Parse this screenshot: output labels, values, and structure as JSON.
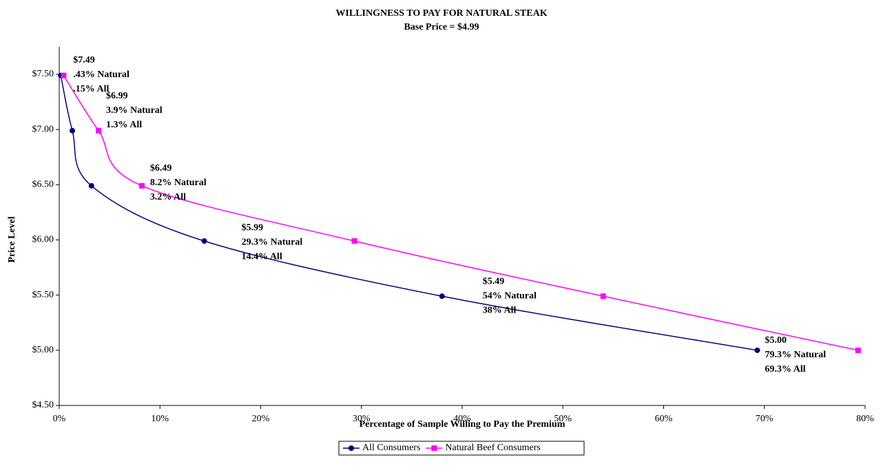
{
  "chart_data": {
    "type": "line",
    "title": "WILLINGNESS TO PAY FOR NATURAL STEAK",
    "subtitle": "Base Price = $4.99",
    "x_label": "Percentage of Sample Willing to Pay the Premium",
    "y_label": "Price Level",
    "xlim": [
      0,
      80
    ],
    "ylim": [
      4.5,
      7.5
    ],
    "xticks": [
      {
        "value": 0,
        "label": "0%"
      },
      {
        "value": 10,
        "label": "10%"
      },
      {
        "value": 20,
        "label": "20%"
      },
      {
        "value": 30,
        "label": "30%"
      },
      {
        "value": 40,
        "label": "40%"
      },
      {
        "value": 50,
        "label": "50%"
      },
      {
        "value": 60,
        "label": "60%"
      },
      {
        "value": 70,
        "label": "70%"
      },
      {
        "value": 80,
        "label": "80%"
      }
    ],
    "yticks": [
      {
        "value": 4.5,
        "label": "$4.50"
      },
      {
        "value": 5.0,
        "label": "$5.00"
      },
      {
        "value": 5.5,
        "label": "$5.50"
      },
      {
        "value": 6.0,
        "label": "$6.00"
      },
      {
        "value": 6.5,
        "label": "$6.50"
      },
      {
        "value": 7.0,
        "label": "$7.00"
      },
      {
        "value": 7.5,
        "label": "$7.50"
      }
    ],
    "series": [
      {
        "name": "All Consumers",
        "color": "#000080",
        "marker": "circle",
        "x": [
          0.15,
          1.3,
          3.2,
          14.4,
          38,
          69.3
        ],
        "values": [
          7.49,
          6.99,
          6.49,
          5.99,
          5.49,
          5.0
        ]
      },
      {
        "name": "Natural Beef Consumers",
        "color": "#ff00ff",
        "marker": "square",
        "x": [
          0.43,
          3.9,
          8.2,
          29.3,
          54,
          79.3
        ],
        "values": [
          7.49,
          6.99,
          6.49,
          5.99,
          5.49,
          5.0
        ]
      }
    ],
    "annotations": [
      [
        "$7.49",
        ".43% Natural",
        ".15% All"
      ],
      [
        "$6.99",
        "3.9% Natural",
        "1.3% All"
      ],
      [
        "$6.49",
        "8.2% Natural",
        "3.2% All"
      ],
      [
        "$5.99",
        "29.3% Natural",
        "14.4% All"
      ],
      [
        "$5.49",
        "54% Natural",
        "38% All"
      ],
      [
        "$5.00",
        "79.3% Natural",
        "69.3% All"
      ]
    ],
    "legend": "bottom"
  }
}
